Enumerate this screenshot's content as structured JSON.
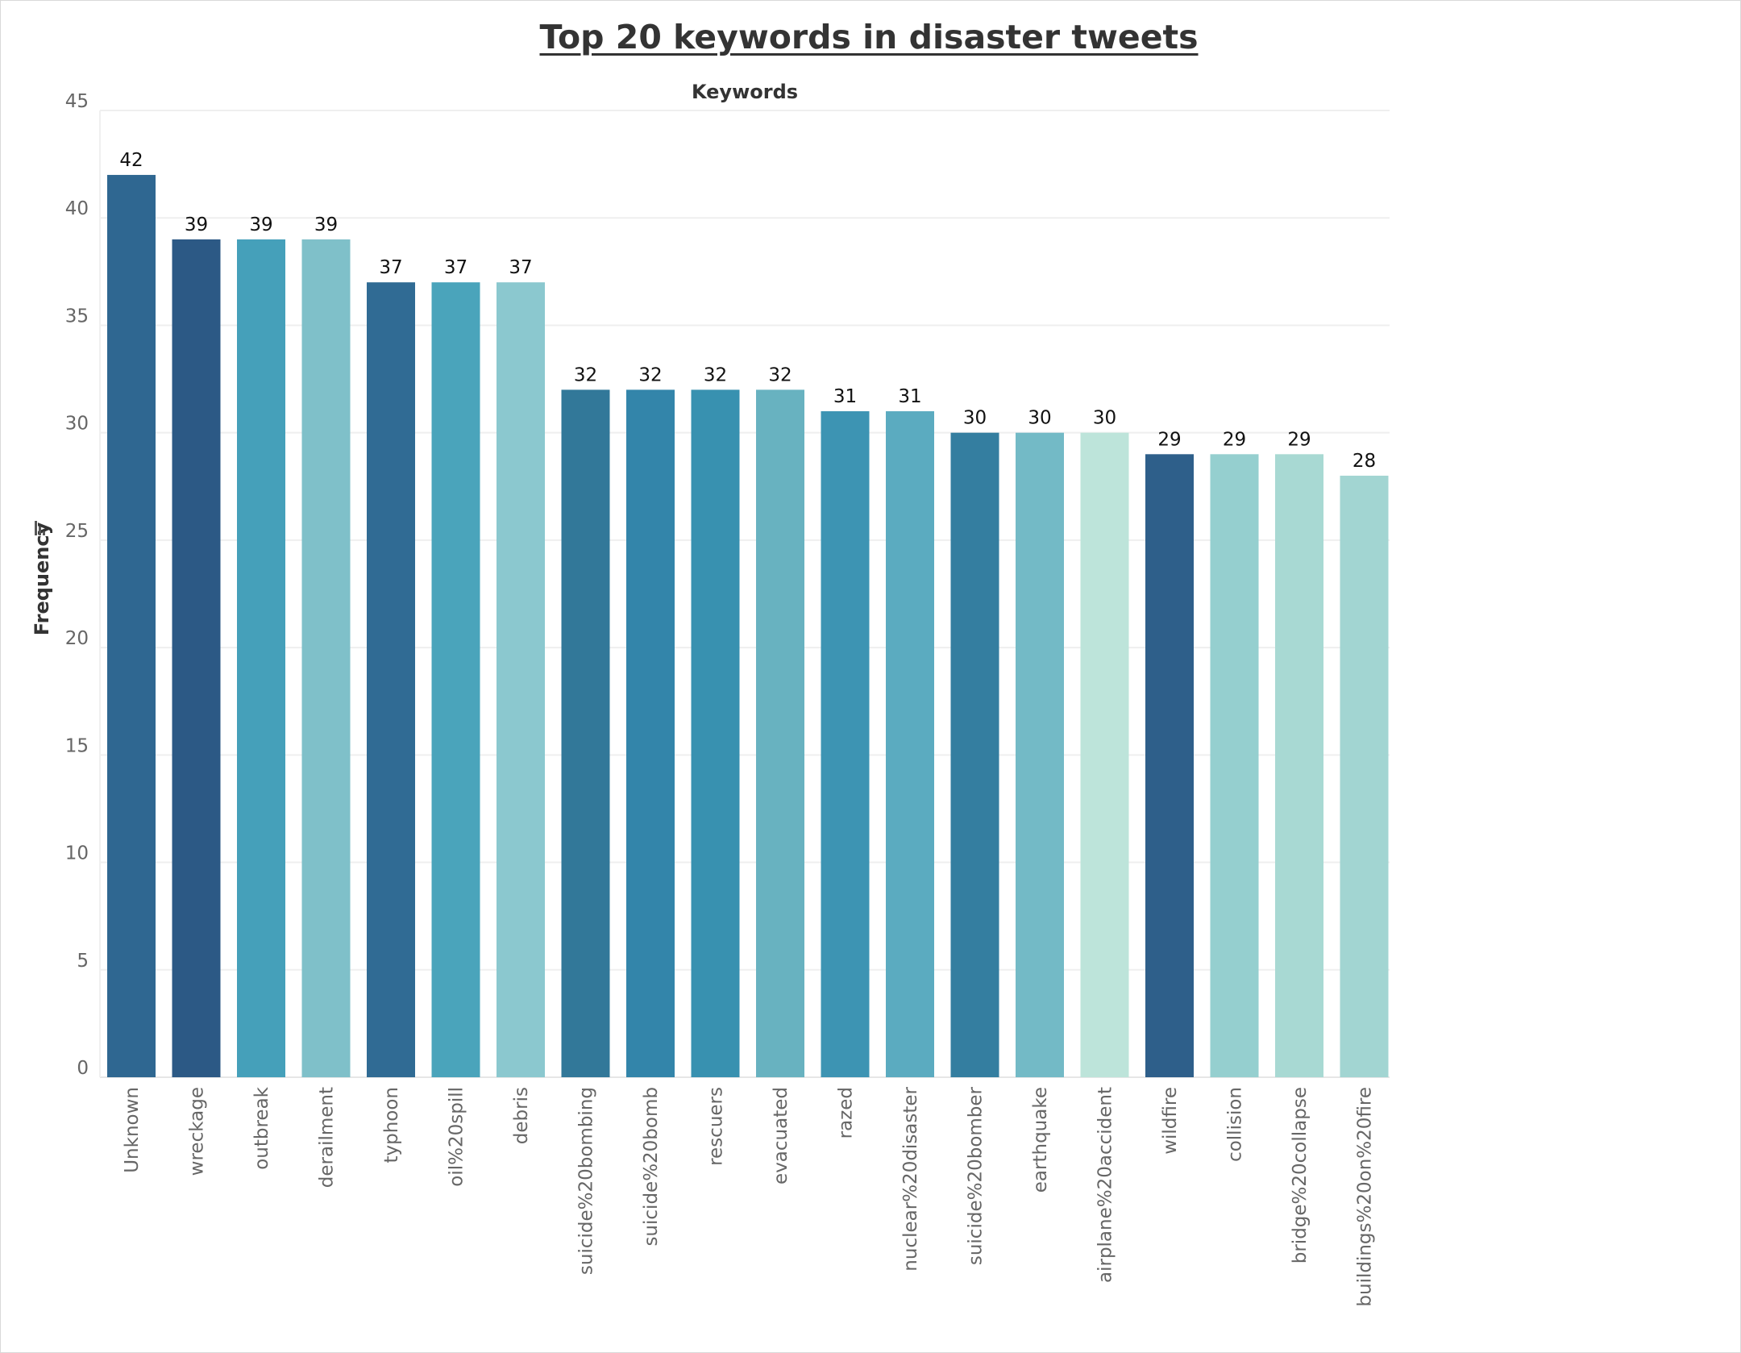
{
  "chart_data": {
    "type": "bar",
    "title": "Top 20 keywords in disaster tweets",
    "xlabel": "Keywords",
    "ylabel": "Frequency",
    "ylim": [
      0,
      45
    ],
    "yticks": [
      0,
      5,
      10,
      15,
      20,
      25,
      30,
      35,
      40,
      45
    ],
    "grid": true,
    "categories": [
      "Unknown",
      "wreckage",
      "outbreak",
      "derailment",
      "typhoon",
      "oil%20spill",
      "debris",
      "suicide%20bombing",
      "suicide%20bomb",
      "rescuers",
      "evacuated",
      "razed",
      "nuclear%20disaster",
      "suicide%20bomber",
      "earthquake",
      "airplane%20accident",
      "wildfire",
      "collision",
      "bridge%20collapse",
      "buildings%20on%20fire"
    ],
    "values": [
      42,
      39,
      39,
      39,
      37,
      37,
      37,
      32,
      32,
      32,
      32,
      31,
      31,
      30,
      30,
      30,
      29,
      29,
      29,
      28
    ],
    "colors": [
      "#2f6791",
      "#2c5985",
      "#45a0ba",
      "#7fc0c9",
      "#306b94",
      "#4aa4bb",
      "#8bc8cf",
      "#327899",
      "#3385aa",
      "#3891b0",
      "#68b2c0",
      "#3d94b3",
      "#5babc0",
      "#347ea0",
      "#73bac6",
      "#bde4da",
      "#2e5f8a",
      "#95cfcf",
      "#a8d9d3",
      "#a2d5d2"
    ]
  }
}
